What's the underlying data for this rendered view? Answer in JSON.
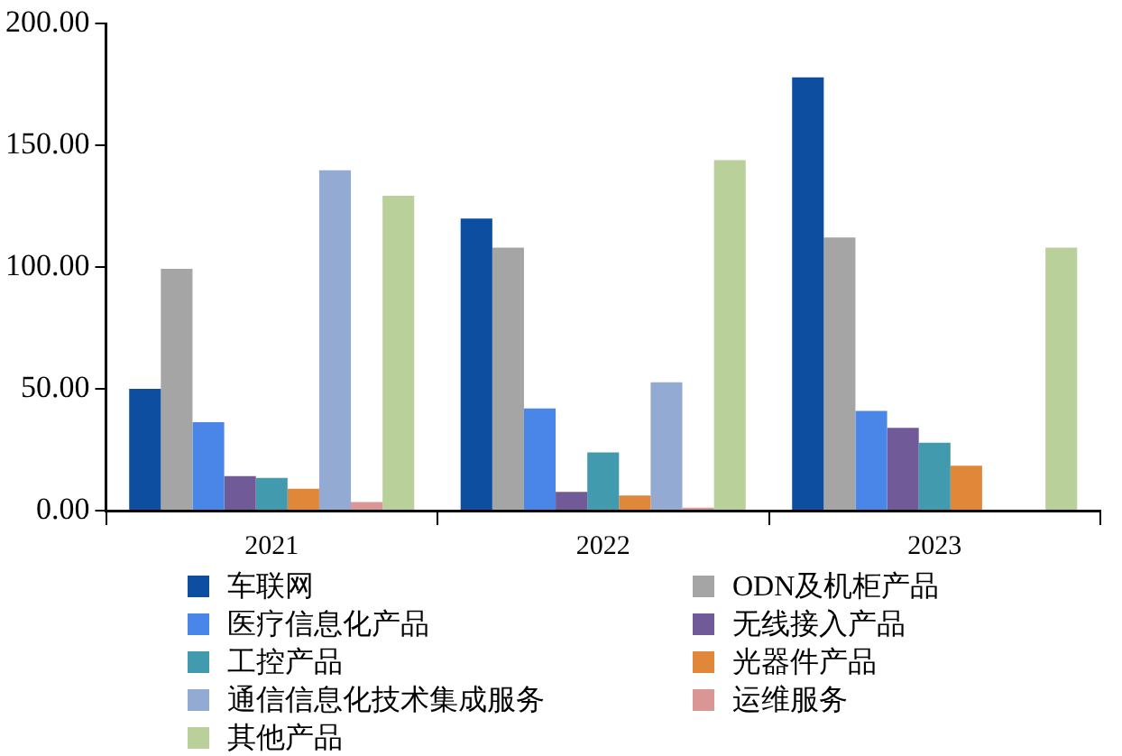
{
  "chart_data": {
    "type": "bar",
    "categories": [
      "2021",
      "2022",
      "2023"
    ],
    "series": [
      {
        "name": "车联网",
        "color": "#0d4ea0",
        "values": [
          50,
          120,
          178
        ]
      },
      {
        "name": "ODN及机柜产品",
        "color": "#a5a5a5",
        "values": [
          99.3,
          108,
          112.2
        ]
      },
      {
        "name": "医疗信息化产品",
        "color": "#4a86e8",
        "values": [
          36.3,
          42,
          41
        ]
      },
      {
        "name": "无线接入产品",
        "color": "#715a98",
        "values": [
          14.2,
          7.7,
          34
        ]
      },
      {
        "name": "工控产品",
        "color": "#419aad",
        "values": [
          13.4,
          23.9,
          27.9
        ]
      },
      {
        "name": "光器件产品",
        "color": "#e0873a",
        "values": [
          9,
          6.2,
          18.4
        ]
      },
      {
        "name": "通信信息化技术集成服务",
        "color": "#93abd3",
        "values": [
          139.8,
          52.7,
          null
        ]
      },
      {
        "name": "运维服务",
        "color": "#d99694",
        "values": [
          3.5,
          1.2,
          null
        ]
      },
      {
        "name": "其他产品",
        "color": "#b9d09a",
        "values": [
          129.4,
          144,
          108
        ]
      }
    ],
    "ylim": [
      0,
      200
    ],
    "yticks": [
      {
        "value": 0,
        "label": "0.00"
      },
      {
        "value": 50,
        "label": "50.00"
      },
      {
        "value": 100,
        "label": "100.00"
      },
      {
        "value": 150,
        "label": "150.00"
      },
      {
        "value": 200,
        "label": "200.00"
      }
    ],
    "grid": false,
    "legend": "bottom"
  }
}
